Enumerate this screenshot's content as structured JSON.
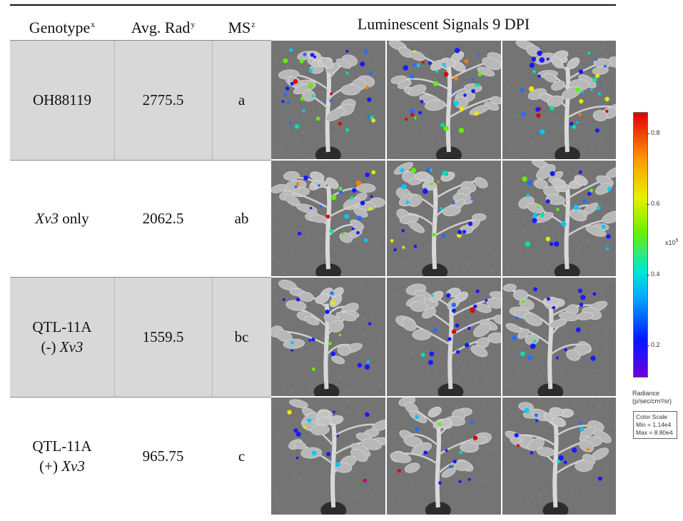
{
  "headers": {
    "genotype": "Genotype",
    "genotype_sup": "x",
    "avg_rad": "Avg. Rad",
    "avg_rad_sup": "y",
    "ms": "MS",
    "ms_sup": "z",
    "signals": "Luminescent Signals 9 DPI"
  },
  "rows": [
    {
      "genotype_line1": "OH88119",
      "genotype_line2_prefix": "",
      "genotype_line2_italic": "",
      "genotype_line1_italic": "",
      "genotype_line1_suffix": "",
      "avg_rad": "2775.5",
      "ms": "a"
    },
    {
      "genotype_line1": "",
      "genotype_line1_italic": "Xv3",
      "genotype_line1_suffix": " only",
      "genotype_line2_prefix": "",
      "genotype_line2_italic": "",
      "avg_rad": "2062.5",
      "ms": "ab"
    },
    {
      "genotype_line1": "QTL-11A",
      "genotype_line1_italic": "",
      "genotype_line1_suffix": "",
      "genotype_line2_prefix": "(-) ",
      "genotype_line2_italic": "Xv3",
      "avg_rad": "1559.5",
      "ms": "bc"
    },
    {
      "genotype_line1": "QTL-11A",
      "genotype_line1_italic": "",
      "genotype_line1_suffix": "",
      "genotype_line2_prefix": "(+) ",
      "genotype_line2_italic": "Xv3",
      "avg_rad": "965.75",
      "ms": "c"
    }
  ],
  "color_scale": {
    "ticks": [
      "0.8",
      "0.6",
      "0.4",
      "0.2"
    ],
    "exponent_base": "x10",
    "exponent_power": "5",
    "radiance_label_line1": "Radiance",
    "radiance_label_line2": "(p/sec/cm²/sr)",
    "box_title": "Color Scale",
    "box_min": "Min = 1.14e4",
    "box_max": "Max = 8.80e4",
    "colors": [
      "#7000d8",
      "#0018ff",
      "#00a8ff",
      "#00e6d8",
      "#6cf000",
      "#e8f000",
      "#ff9a00",
      "#e00000"
    ]
  },
  "photo_description_icon": "plant-bioluminescence-image"
}
